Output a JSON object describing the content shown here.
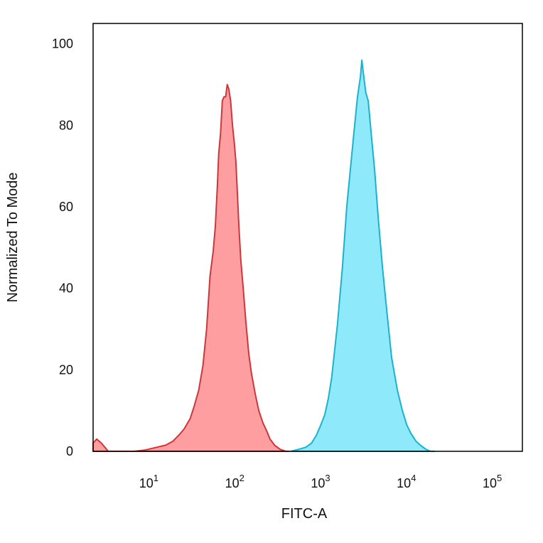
{
  "chart_data": {
    "type": "area",
    "title": "",
    "xlabel": "FITC-A",
    "ylabel": "Normalized To Mode",
    "xscale": "log",
    "xlim": [
      2,
      200000
    ],
    "ylim": [
      0,
      105
    ],
    "y_ticks": [
      0,
      20,
      40,
      60,
      80,
      100
    ],
    "x_ticks": [
      {
        "value": 10,
        "base": "10",
        "exp": "1"
      },
      {
        "value": 100,
        "base": "10",
        "exp": "2"
      },
      {
        "value": 1000,
        "base": "10",
        "exp": "3"
      },
      {
        "value": 10000,
        "base": "10",
        "exp": "4"
      },
      {
        "value": 100000,
        "base": "10",
        "exp": "5"
      }
    ],
    "grid": false,
    "legend": "none",
    "series": [
      {
        "color": "#ff9ea0",
        "edge": "#c9383d",
        "x": [
          2,
          2.2,
          2.5,
          3,
          6,
          8,
          11,
          14,
          17,
          20,
          23,
          27,
          30,
          34,
          38,
          42,
          46,
          50,
          53,
          56,
          58,
          61,
          64,
          67,
          70,
          73,
          76,
          80,
          84,
          88,
          92,
          96,
          100,
          105,
          112,
          120,
          130,
          140,
          155,
          170,
          190,
          210,
          230,
          260,
          300,
          350,
          380
        ],
        "y": [
          2,
          3,
          2,
          0,
          0,
          0.3,
          1,
          1.5,
          2.5,
          4,
          5.5,
          8,
          11,
          15,
          21,
          30,
          43,
          49,
          55,
          65,
          73,
          78,
          86,
          87,
          87,
          90,
          89,
          86,
          80,
          76,
          71,
          63,
          55,
          47,
          40,
          32,
          24,
          19,
          14,
          10,
          7,
          5,
          3,
          1.5,
          0.5,
          0,
          0
        ]
      },
      {
        "color": "#8ee9fb",
        "edge": "#1fb0cc",
        "x": [
          400,
          500,
          600,
          700,
          800,
          900,
          1000,
          1100,
          1200,
          1400,
          1600,
          1800,
          2000,
          2200,
          2400,
          2600,
          2700,
          2800,
          3000,
          3200,
          3500,
          3800,
          4200,
          4700,
          5300,
          6000,
          7000,
          8000,
          9000,
          10000,
          11500,
          13000,
          15000,
          17000,
          19000
        ],
        "y": [
          0,
          0.5,
          1,
          2,
          4,
          6.5,
          9,
          13,
          18,
          31,
          45,
          60,
          70,
          79,
          87,
          92,
          96,
          93,
          88,
          86,
          77,
          69,
          57,
          45,
          34,
          23,
          15,
          10,
          6.5,
          4.5,
          2.5,
          1.5,
          0.5,
          0,
          0
        ]
      }
    ]
  }
}
